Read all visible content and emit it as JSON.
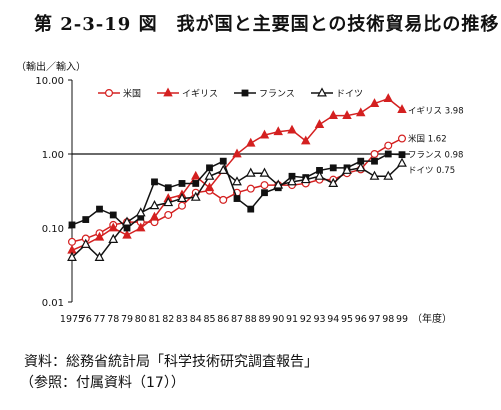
{
  "figure": {
    "title": "第 2-3-19 図　我が国と主要国との技術貿易比の推移",
    "source": "資料：総務省統計局「科学技術研究調査報告」",
    "reference": "（参照：付属資料（17））"
  },
  "chart_data": {
    "type": "line",
    "title": "",
    "ylabel": "（輸出／輸入）",
    "xunit": "（年度）",
    "yscale": "log",
    "ylim": [
      0.01,
      10
    ],
    "yticks": [
      {
        "value": 10,
        "label": "10.00"
      },
      {
        "value": 1,
        "label": "1.00"
      },
      {
        "value": 0.1,
        "label": "0.10"
      },
      {
        "value": 0.01,
        "label": "0.01"
      }
    ],
    "reference_line": 1,
    "categories": [
      "1975",
      "76",
      "77",
      "78",
      "79",
      "80",
      "81",
      "82",
      "83",
      "84",
      "85",
      "86",
      "87",
      "88",
      "89",
      "90",
      "91",
      "92",
      "93",
      "94",
      "95",
      "96",
      "97",
      "98",
      "99"
    ],
    "legend_position": "top-left",
    "series": [
      {
        "name": "米国",
        "end_label": "米国 1.62",
        "color": "#d42020",
        "marker": "circle-open",
        "values": [
          0.065,
          0.072,
          0.085,
          0.11,
          0.12,
          0.12,
          0.12,
          0.15,
          0.2,
          0.3,
          0.32,
          0.24,
          0.3,
          0.34,
          0.38,
          0.38,
          0.38,
          0.4,
          0.45,
          0.45,
          0.55,
          0.62,
          1.0,
          1.3,
          1.62
        ]
      },
      {
        "name": "イギリス",
        "end_label": "イギリス 3.98",
        "color": "#d42020",
        "marker": "triangle-filled",
        "values": [
          0.05,
          0.06,
          0.075,
          0.1,
          0.08,
          0.1,
          0.14,
          0.25,
          0.28,
          0.5,
          0.35,
          0.6,
          1.0,
          1.4,
          1.8,
          2.0,
          2.1,
          1.5,
          2.5,
          3.3,
          3.3,
          3.6,
          4.8,
          5.6,
          3.98
        ]
      },
      {
        "name": "フランス",
        "end_label": "フランス 0.98",
        "color": "#111111",
        "marker": "square-filled",
        "values": [
          0.11,
          0.13,
          0.18,
          0.15,
          0.1,
          0.14,
          0.42,
          0.35,
          0.4,
          0.4,
          0.65,
          0.8,
          0.25,
          0.18,
          0.3,
          0.35,
          0.5,
          0.48,
          0.6,
          0.65,
          0.65,
          0.8,
          0.8,
          1.0,
          0.98
        ]
      },
      {
        "name": "ドイツ",
        "end_label": "ドイツ 0.75",
        "color": "#111111",
        "marker": "triangle-open",
        "values": [
          0.04,
          0.06,
          0.04,
          0.07,
          0.12,
          0.16,
          0.2,
          0.22,
          0.25,
          0.26,
          0.5,
          0.6,
          0.42,
          0.55,
          0.55,
          0.38,
          0.42,
          0.45,
          0.5,
          0.4,
          0.6,
          0.65,
          0.5,
          0.5,
          0.75
        ]
      }
    ]
  }
}
